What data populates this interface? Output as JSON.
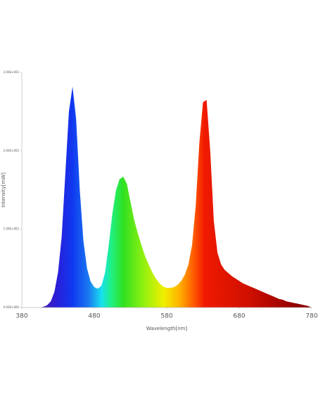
{
  "chart_data": {
    "type": "area",
    "x_label": "Wavelength[nm]",
    "y_label": "Intensity[mW]",
    "x": [
      380,
      385,
      390,
      395,
      400,
      405,
      410,
      415,
      420,
      425,
      430,
      435,
      440,
      445,
      450,
      455,
      460,
      465,
      470,
      475,
      480,
      485,
      490,
      495,
      500,
      505,
      510,
      515,
      520,
      525,
      530,
      535,
      540,
      545,
      550,
      555,
      560,
      565,
      570,
      575,
      580,
      585,
      590,
      595,
      600,
      605,
      610,
      615,
      620,
      625,
      630,
      635,
      640,
      645,
      650,
      655,
      660,
      665,
      670,
      675,
      680,
      685,
      690,
      695,
      700,
      705,
      710,
      715,
      720,
      725,
      730,
      735,
      740,
      745,
      750,
      755,
      760,
      765,
      770,
      775,
      780
    ],
    "values": [
      0,
      0,
      0,
      0,
      0,
      0,
      1,
      3,
      8,
      20,
      45,
      90,
      170,
      250,
      282,
      240,
      150,
      85,
      50,
      33,
      26,
      24,
      28,
      45,
      80,
      120,
      150,
      164,
      167,
      158,
      135,
      112,
      95,
      80,
      66,
      55,
      45,
      37,
      31,
      27,
      25,
      25,
      26,
      29,
      34,
      42,
      55,
      80,
      130,
      210,
      262,
      265,
      200,
      110,
      70,
      55,
      48,
      44,
      40,
      37,
      34,
      31,
      29,
      27,
      25,
      23,
      21,
      19,
      17,
      15,
      13,
      11,
      10,
      8,
      7,
      6,
      5,
      4,
      3,
      2,
      0
    ],
    "xlim": [
      380,
      780
    ],
    "xticks": [
      380,
      480,
      580,
      680,
      780
    ],
    "ylim": [
      0,
      300
    ],
    "yticks": [
      {
        "value": 0,
        "label": "0.00E+000"
      },
      {
        "value": 100,
        "label": "1.00E+002"
      },
      {
        "value": 200,
        "label": "2.00E+002"
      },
      {
        "value": 300,
        "label": "3.00E+002"
      }
    ]
  }
}
